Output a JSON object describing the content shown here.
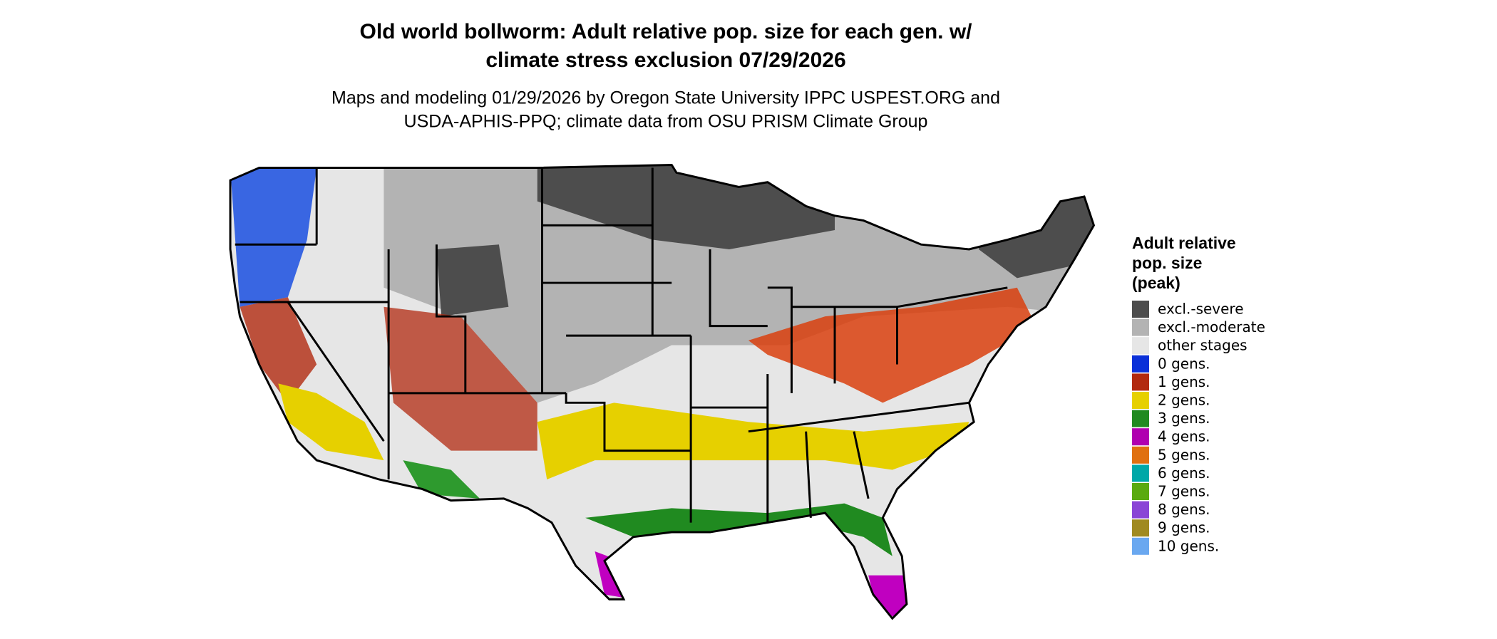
{
  "title": [
    "Old world bollworm: Adult relative pop. size for each gen. w/",
    "climate stress exclusion 07/29/2026"
  ],
  "subtitle": [
    "Maps and modeling 01/29/2026 by Oregon State University IPPC USPEST.ORG and",
    "USDA-APHIS-PPQ; climate data from OSU PRISM Climate Group"
  ],
  "legend": {
    "title": [
      "Adult relative",
      "pop. size",
      "(peak)"
    ],
    "items": [
      {
        "label": "excl.-severe",
        "color": "#4d4d4d"
      },
      {
        "label": "excl.-moderate",
        "color": "#b3b3b3"
      },
      {
        "label": "other stages",
        "color": "#e6e6e6"
      },
      {
        "label": "0 gens.",
        "color": "#0a30d8"
      },
      {
        "label": "1 gens.",
        "color": "#b22a10"
      },
      {
        "label": "2 gens.",
        "color": "#e6d000"
      },
      {
        "label": "3 gens.",
        "color": "#208a20"
      },
      {
        "label": "4 gens.",
        "color": "#b000b0"
      },
      {
        "label": "5 gens.",
        "color": "#e07010"
      },
      {
        "label": "6 gens.",
        "color": "#00a8a8"
      },
      {
        "label": "7 gens.",
        "color": "#5aaa10"
      },
      {
        "label": "8 gens.",
        "color": "#8a44d6"
      },
      {
        "label": "9 gens.",
        "color": "#a08a20"
      },
      {
        "label": "10 gens.",
        "color": "#6aa8f0"
      }
    ]
  }
}
